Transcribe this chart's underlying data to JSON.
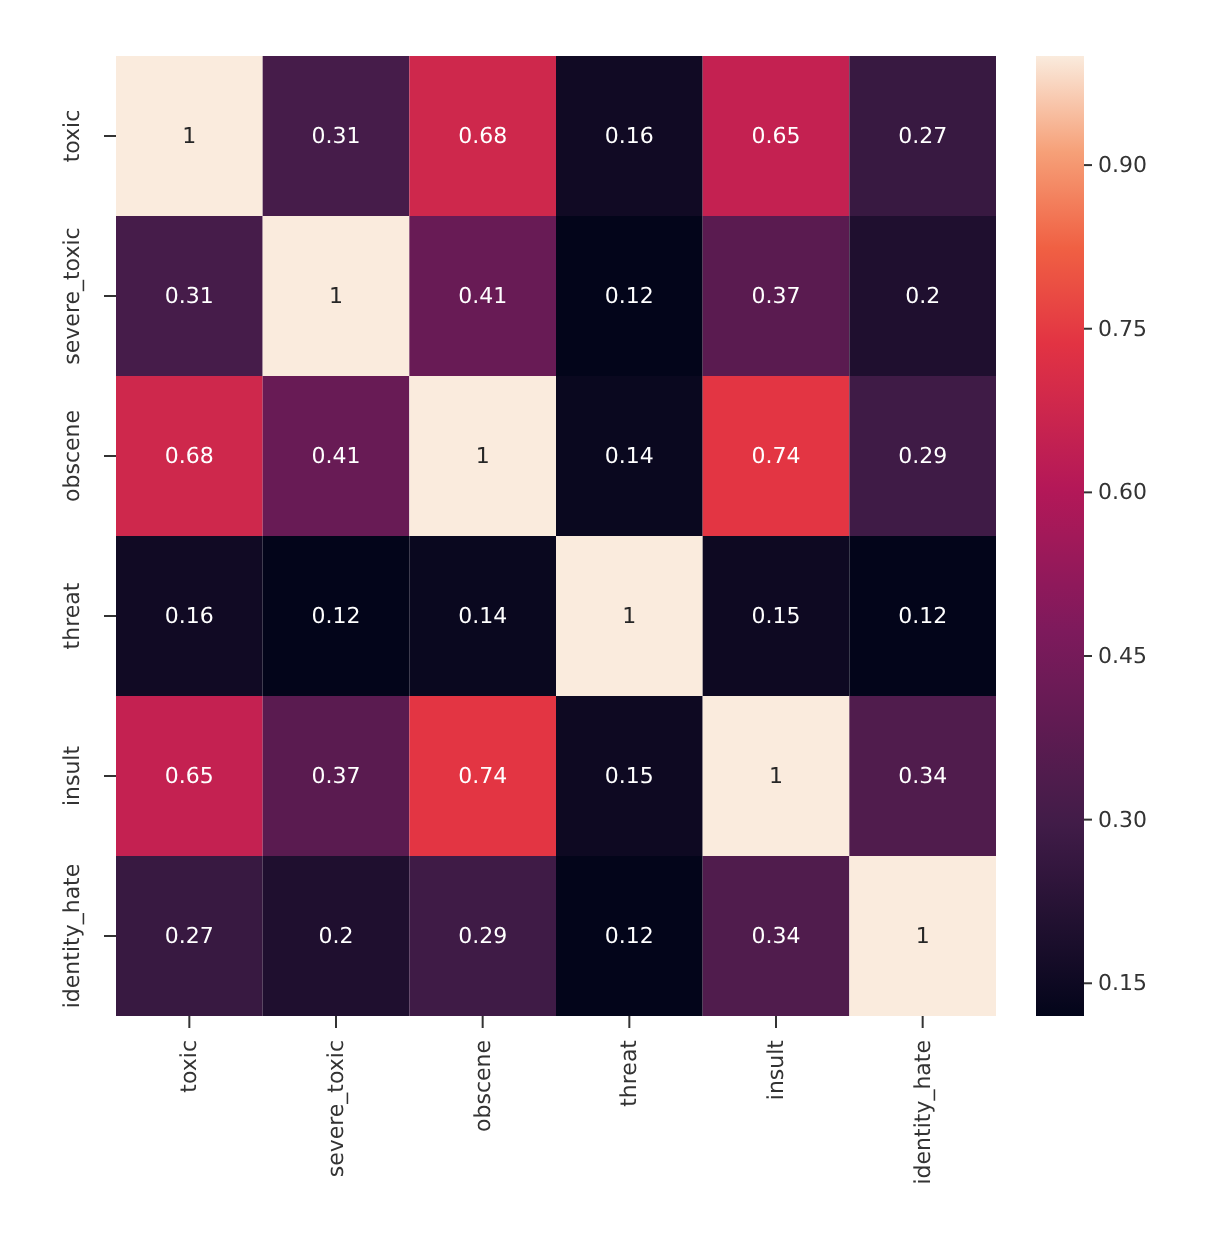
{
  "chart_data": {
    "type": "heatmap",
    "categories": [
      "toxic",
      "severe_toxic",
      "obscene",
      "threat",
      "insult",
      "identity_hate"
    ],
    "y_categories": [
      "toxic",
      "severe_toxic",
      "obscene",
      "threat",
      "insult",
      "identity_hate"
    ],
    "cells": [
      [
        1,
        0.31,
        0.68,
        0.16,
        0.65,
        0.27
      ],
      [
        0.31,
        1,
        0.41,
        0.12,
        0.37,
        0.2
      ],
      [
        0.68,
        0.41,
        1,
        0.14,
        0.74,
        0.29
      ],
      [
        0.16,
        0.12,
        0.14,
        1,
        0.15,
        0.12
      ],
      [
        0.65,
        0.37,
        0.74,
        0.15,
        1,
        0.34
      ],
      [
        0.27,
        0.2,
        0.29,
        0.12,
        0.34,
        1
      ]
    ],
    "data_labels": true,
    "clim": [
      0.12,
      1
    ],
    "cticks": [
      0.15,
      {
        "value": 0.3,
        "label": "0.30"
      },
      0.45,
      {
        "value": 0.6,
        "label": "0.60"
      },
      0.75,
      {
        "value": 0.9,
        "label": "0.90"
      }
    ]
  }
}
